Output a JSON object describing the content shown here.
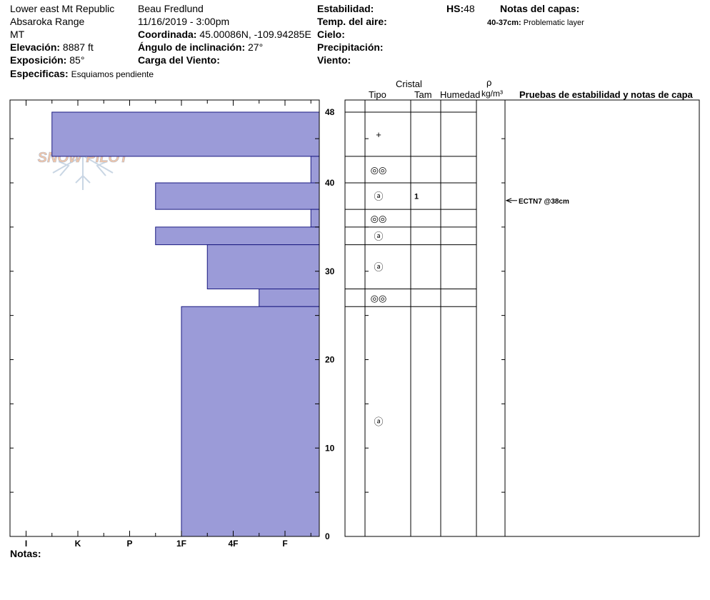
{
  "header": {
    "location": "Lower east Mt Republic",
    "range": "Absaroka Range",
    "state": "MT",
    "elevation_label": "Elevación:",
    "elevation_value": "8887 ft",
    "aspect_label": "Exposición:",
    "aspect_value": "85°",
    "specifics_label": "Especificas:",
    "specifics_value": "Esquiamos pendiente",
    "observer": "Beau  Fredlund",
    "datetime": "11/16/2019 - 3:00pm",
    "coord_label": "Coordinada:",
    "coord_value": "45.00086N, -109.94285E",
    "slope_label": "Ángulo de inclinación:",
    "slope_value": "27°",
    "wind_load_label": "Carga del Viento:",
    "stability_label": "Estabilidad:",
    "air_temp_label": "Temp. del aire:",
    "sky_label": "Cielo:",
    "precip_label": "Precipitación:",
    "wind_label": "Viento:",
    "hs_label": "HS:",
    "hs_value": "48",
    "layer_notes_label": "Notas del capas:",
    "layer_note_range": "40-37cm:",
    "layer_note_text": "Problematic layer"
  },
  "columns": {
    "cristal": "Cristal",
    "tipo": "Tipo",
    "tam": "Tam",
    "humedad": "Humedad",
    "rho": "ρ",
    "density_unit": "kg/m³",
    "pruebas": "Pruebas de estabilidad y notas de capa"
  },
  "logo_text": "SNOW PILOT",
  "notes_label": "Notas:",
  "chart_data": {
    "type": "bar",
    "orientation": "horizontal",
    "y_unit": "cm",
    "ylim": [
      0,
      48
    ],
    "y_ticks": [
      0,
      10,
      20,
      30,
      40,
      48
    ],
    "hardness_scale": [
      "I",
      "K",
      "P",
      "1F",
      "4F",
      "F"
    ],
    "layers": [
      {
        "top": 48,
        "bottom": 43,
        "hardness_index": 0.5
      },
      {
        "top": 43,
        "bottom": 40,
        "hardness_index": 5.5
      },
      {
        "top": 40,
        "bottom": 37,
        "hardness_index": 2.5
      },
      {
        "top": 37,
        "bottom": 35,
        "hardness_index": 5.5
      },
      {
        "top": 35,
        "bottom": 33,
        "hardness_index": 2.5
      },
      {
        "top": 33,
        "bottom": 28,
        "hardness_index": 3.5
      },
      {
        "top": 28,
        "bottom": 26,
        "hardness_index": 4.5
      },
      {
        "top": 26,
        "bottom": 0,
        "hardness_index": 3.0
      }
    ],
    "crystal_rows": [
      {
        "top": 48,
        "bottom": 43,
        "symbol": "+",
        "size": ""
      },
      {
        "top": 43,
        "bottom": 40,
        "symbol": "◎◎",
        "size": ""
      },
      {
        "top": 40,
        "bottom": 37,
        "symbol": "ⓐ",
        "size": "1"
      },
      {
        "top": 37,
        "bottom": 35,
        "symbol": "◎◎",
        "size": ""
      },
      {
        "top": 35,
        "bottom": 33,
        "symbol": "ⓐ",
        "size": ""
      },
      {
        "top": 33,
        "bottom": 28,
        "symbol": "ⓐ",
        "size": ""
      },
      {
        "top": 28,
        "bottom": 26,
        "symbol": "◎◎",
        "size": ""
      },
      {
        "top": 26,
        "bottom": 0,
        "symbol": "ⓐ",
        "size": ""
      }
    ],
    "stability_tests": [
      {
        "depth": 38,
        "label": "ECTN7 @38cm"
      }
    ]
  }
}
